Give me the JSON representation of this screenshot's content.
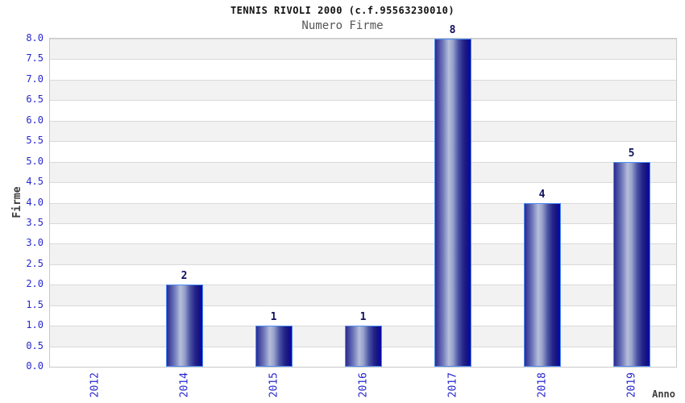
{
  "chart_data": {
    "type": "bar",
    "title": "TENNIS RIVOLI 2000 (c.f.95563230010)",
    "subtitle": "Numero Firme",
    "xlabel": "Anno",
    "ylabel": "Firme",
    "categories": [
      "2012",
      "2014",
      "2015",
      "2016",
      "2017",
      "2018",
      "2019"
    ],
    "values": [
      0,
      2,
      1,
      1,
      8,
      4,
      5
    ],
    "ylim": [
      0.0,
      8.0
    ],
    "ytick_step": 0.5,
    "grid": "horizontal-bands-alternating",
    "legend": "none",
    "bar_value_labels_shown": true
  },
  "colors": {
    "title_color": "#111111",
    "subtitle_color": "#555555",
    "tick_label": "#2727cf",
    "value_label": "#10105e",
    "axis_label": "#3d3d3d",
    "bar_dark": "#23238a",
    "bar_light": "#b5beda",
    "bar_border": "#4d8cf0",
    "bar_edge_blue": "#0b0ba4",
    "band_gray": "#f2f2f2",
    "band_white": "#ffffff",
    "gridline": "#d9d9d9",
    "plot_border": "#c9c9c9"
  }
}
